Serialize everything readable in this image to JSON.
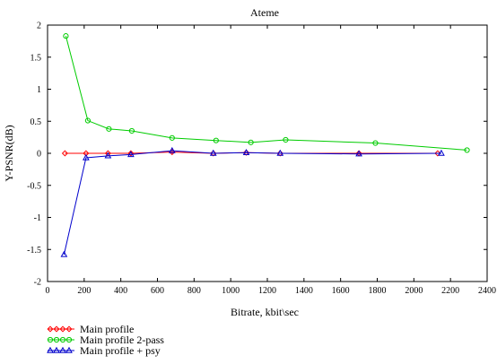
{
  "chart_data": {
    "type": "line",
    "title": "Ateme",
    "xlabel": "Bitrate, kbit\\sec",
    "ylabel": "Y-PSNR(dB)",
    "xlim": [
      0,
      2400
    ],
    "ylim": [
      -2,
      2
    ],
    "xticks": [
      0,
      200,
      400,
      600,
      800,
      1000,
      1200,
      1400,
      1600,
      1800,
      2000,
      2200,
      2400
    ],
    "yticks": [
      -2,
      -1.5,
      -1,
      -0.5,
      0,
      0.5,
      1,
      1.5,
      2
    ],
    "grid": false,
    "legend_position": "bottom-left",
    "series": [
      {
        "name": "Main profile",
        "color": "#ff0000",
        "marker": "diamond",
        "points": [
          [
            95,
            0.0
          ],
          [
            210,
            0.0
          ],
          [
            330,
            0.0
          ],
          [
            455,
            0.0
          ],
          [
            680,
            0.02
          ],
          [
            905,
            0.0
          ],
          [
            1085,
            0.01
          ],
          [
            1270,
            0.0
          ],
          [
            1700,
            0.0
          ],
          [
            2130,
            0.0
          ]
        ]
      },
      {
        "name": "Main profile 2-pass",
        "color": "#00cc00",
        "marker": "circle",
        "points": [
          [
            100,
            1.83
          ],
          [
            220,
            0.51
          ],
          [
            335,
            0.38
          ],
          [
            460,
            0.35
          ],
          [
            680,
            0.24
          ],
          [
            920,
            0.2
          ],
          [
            1110,
            0.17
          ],
          [
            1300,
            0.21
          ],
          [
            1790,
            0.16
          ],
          [
            2290,
            0.05
          ]
        ]
      },
      {
        "name": "Main profile + psy",
        "color": "#0000cc",
        "marker": "triangle",
        "points": [
          [
            90,
            -1.58
          ],
          [
            210,
            -0.07
          ],
          [
            330,
            -0.04
          ],
          [
            455,
            -0.02
          ],
          [
            680,
            0.04
          ],
          [
            905,
            0.0
          ],
          [
            1085,
            0.01
          ],
          [
            1270,
            0.0
          ],
          [
            1700,
            -0.01
          ],
          [
            2150,
            0.0
          ]
        ]
      }
    ]
  }
}
